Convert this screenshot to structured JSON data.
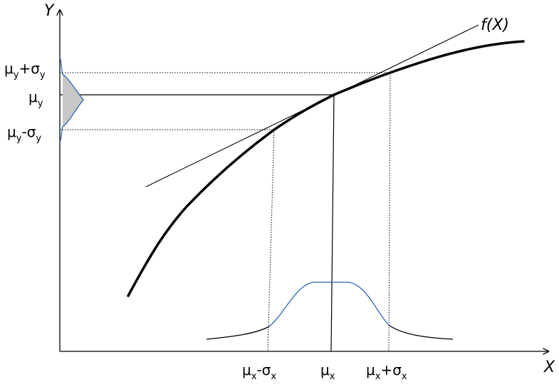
{
  "axes": {
    "x_label": "X",
    "y_label": "Y"
  },
  "function_label": "f(X)",
  "x_markers": {
    "minus": {
      "main": "μ",
      "sub1": "x",
      "op": "-σ",
      "sub2": "x"
    },
    "mean": {
      "main": "μ",
      "sub1": "x"
    },
    "plus": {
      "main": "μ",
      "sub1": "x",
      "op": "+σ",
      "sub2": "x"
    }
  },
  "y_markers": {
    "plus": {
      "main": "μ",
      "sub1": "y",
      "op": "+σ",
      "sub2": "y"
    },
    "mean": {
      "main": "μ",
      "sub1": "y"
    },
    "minus": {
      "main": "μ",
      "sub1": "y",
      "op": "-σ",
      "sub2": "y"
    }
  },
  "colors": {
    "curve": "#000000",
    "distribution_highlight": "#2f5fb8",
    "shaded_region": "#c8c8c8"
  }
}
